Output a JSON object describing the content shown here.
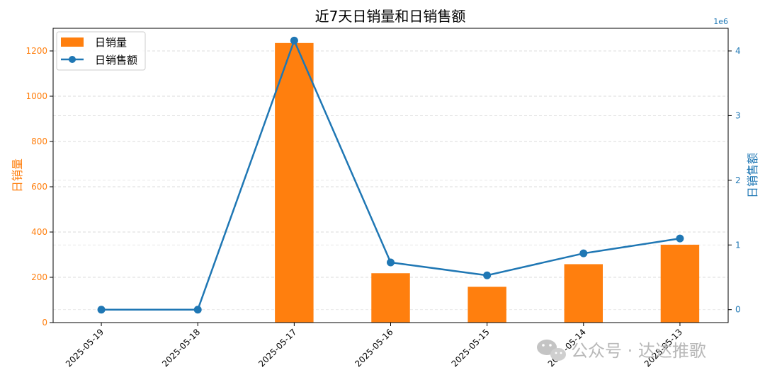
{
  "chart_data": {
    "type": "bar+line",
    "title": "近7天日销量和日销售额",
    "categories": [
      "2025-05-19",
      "2025-05-18",
      "2025-05-17",
      "2025-05-16",
      "2025-05-15",
      "2025-05-14",
      "2025-05-13"
    ],
    "series": [
      {
        "name": "日销量",
        "type": "bar",
        "axis": "left",
        "color": "#ff7f0e",
        "values": [
          0,
          0,
          1235,
          218,
          158,
          258,
          344
        ]
      },
      {
        "name": "日销售额",
        "type": "line",
        "axis": "right",
        "color": "#1f77b4",
        "values": [
          0,
          0,
          4160000,
          730000,
          530000,
          870000,
          1100000
        ]
      }
    ],
    "ylabel_left": "日销量",
    "ylabel_right": "日销售额",
    "ylim_left": [
      0,
      1300
    ],
    "ylim_right": [
      -200000,
      4350000
    ],
    "yticks_left": [
      "0",
      "200",
      "400",
      "600",
      "800",
      "1000",
      "1200"
    ],
    "yticks_right": [
      "0",
      "1",
      "2",
      "3",
      "4"
    ],
    "right_axis_offset": "1e6",
    "grid": "horizontal dashed",
    "legend_position": "top-left"
  },
  "watermark": {
    "text": "公众号 · 达达推歌",
    "icon": "wechat-icon"
  }
}
